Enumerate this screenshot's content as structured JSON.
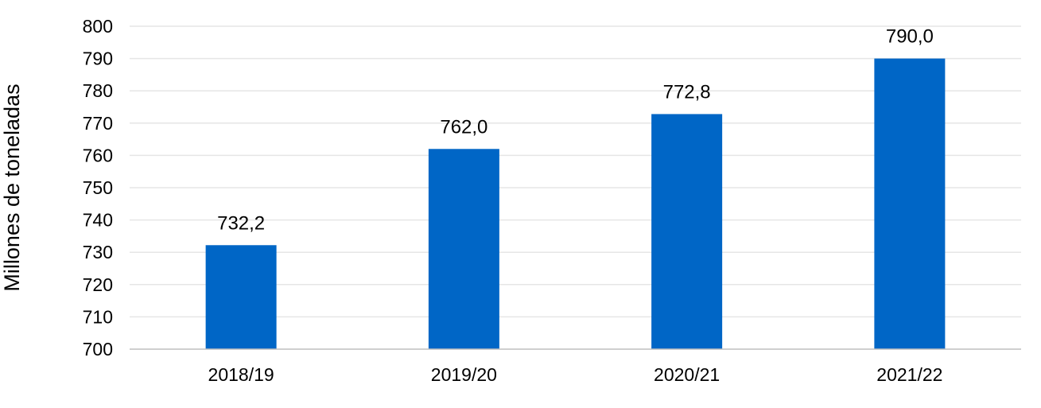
{
  "chart_data": {
    "type": "bar",
    "categories": [
      "2018/19",
      "2019/20",
      "2020/21",
      "2021/22"
    ],
    "values": [
      732.2,
      762.0,
      772.8,
      790.0
    ],
    "data_labels": [
      "732,2",
      "762,0",
      "772,8",
      "790,0"
    ],
    "title": "",
    "xlabel": "",
    "ylabel": "Millones de toneladas",
    "ylim": [
      700,
      800
    ],
    "yticks": [
      700,
      710,
      720,
      730,
      740,
      750,
      760,
      770,
      780,
      790,
      800
    ],
    "grid": true,
    "legend": "none",
    "colors": {
      "bar": "#0066C6",
      "grid": "#E6E6E6",
      "axis": "#BFBFBF"
    }
  }
}
